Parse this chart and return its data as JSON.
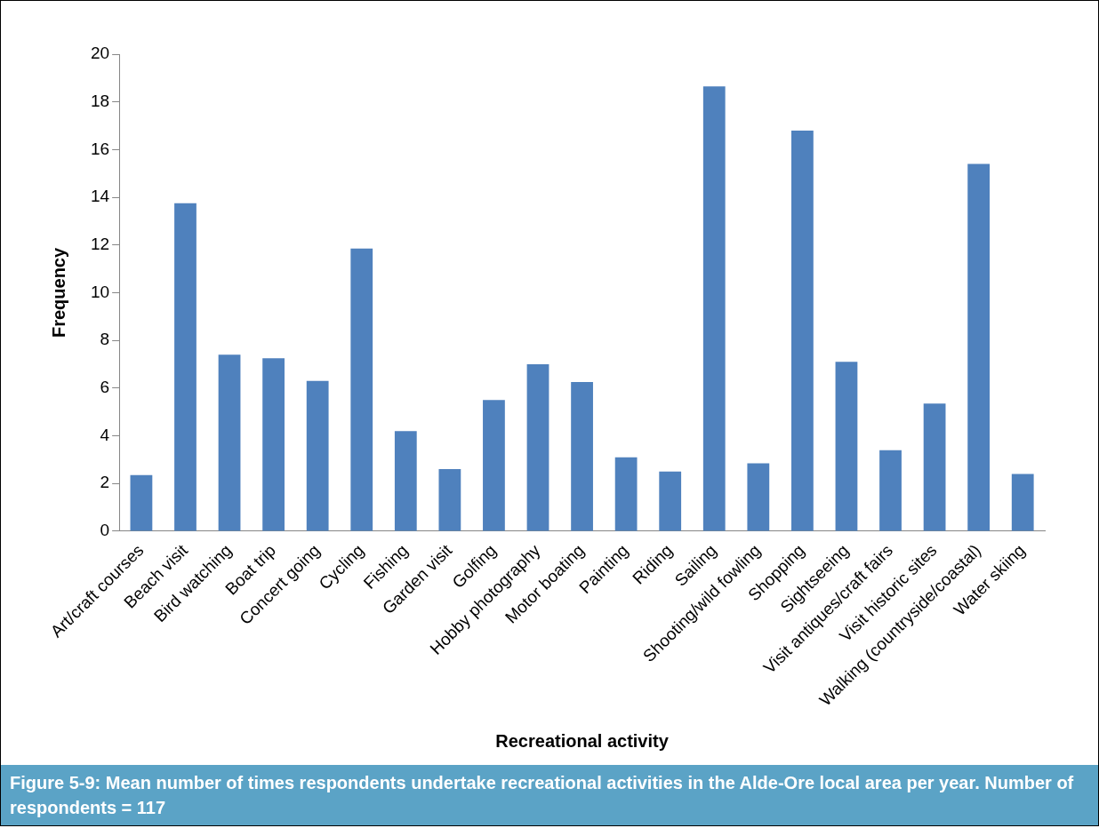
{
  "chart_data": {
    "type": "bar",
    "title": "Figure 5-9:  Mean number of times respondents undertake recreational activities in the Alde-Ore local area per year.  Number of respondents = 117",
    "xlabel": "Recreational activity",
    "ylabel": "Frequency",
    "categories": [
      "Art/craft courses",
      "Beach visit",
      "Bird watching",
      "Boat trip",
      "Concert going",
      "Cycling",
      "Fishing",
      "Garden visit",
      "Golfing",
      "Hobby photography",
      "Motor boating",
      "Painting",
      "Riding",
      "Sailing",
      "Shooting/wild fowling",
      "Shopping",
      "Sightseeing",
      "Visit antiques/craft fairs",
      "Visit historic sites",
      "Walking (countryside/coastal)",
      "Water skiing"
    ],
    "values": [
      2.35,
      13.75,
      7.4,
      7.25,
      6.3,
      11.85,
      4.2,
      2.6,
      5.5,
      7.0,
      6.25,
      3.1,
      2.5,
      18.65,
      2.85,
      16.8,
      7.1,
      3.4,
      5.35,
      15.4,
      2.4
    ],
    "color": "#4f81bd",
    "ylim": [
      0,
      20
    ],
    "yticks": [
      0,
      2,
      4,
      6,
      8,
      10,
      12,
      14,
      16,
      18,
      20
    ],
    "grid": false,
    "legend": false
  }
}
